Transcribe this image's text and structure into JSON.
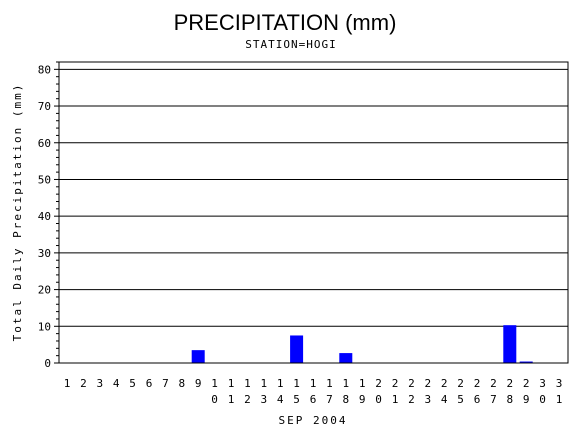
{
  "chart_data": {
    "type": "bar",
    "title": "PRECIPITATION (mm)",
    "subtitle": "STATION=HOGI",
    "xlabel": "SEP 2004",
    "ylabel": "Total Daily Precipitation (mm)",
    "ylim": [
      0,
      82
    ],
    "yticks": [
      0,
      10,
      20,
      30,
      40,
      50,
      60,
      70,
      80
    ],
    "grid": true,
    "bar_color": "#0000ff",
    "categories": [
      "1",
      "2",
      "3",
      "4",
      "5",
      "6",
      "7",
      "8",
      "9",
      "10",
      "11",
      "12",
      "13",
      "14",
      "15",
      "16",
      "17",
      "18",
      "19",
      "20",
      "21",
      "22",
      "23",
      "24",
      "25",
      "26",
      "27",
      "28",
      "29",
      "30",
      "31"
    ],
    "values": [
      0,
      0,
      0,
      0,
      0,
      0,
      0,
      0,
      3.5,
      0,
      0,
      0,
      0,
      0,
      7.5,
      0,
      0,
      2.7,
      0,
      0,
      0,
      0,
      0,
      0,
      0,
      0,
      0,
      10.3,
      0.4,
      0,
      0
    ]
  }
}
